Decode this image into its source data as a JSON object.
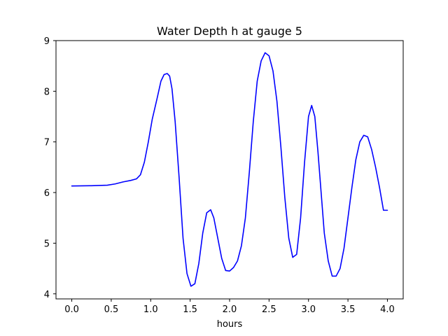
{
  "chart_data": {
    "type": "line",
    "title": "Water Depth h at gauge 5",
    "xlabel": "hours",
    "ylabel": "",
    "xlim": [
      -0.2,
      4.2
    ],
    "ylim": [
      3.9,
      9.0
    ],
    "xticks": [
      0.0,
      0.5,
      1.0,
      1.5,
      2.0,
      2.5,
      3.0,
      3.5,
      4.0
    ],
    "xtick_labels": [
      "0.0",
      "0.5",
      "1.0",
      "1.5",
      "2.0",
      "2.5",
      "3.0",
      "3.5",
      "4.0"
    ],
    "yticks": [
      4,
      5,
      6,
      7,
      8,
      9
    ],
    "ytick_labels": [
      "4",
      "5",
      "6",
      "7",
      "8",
      "9"
    ],
    "grid": false,
    "legend": "none",
    "series": [
      {
        "color": "#0000ff",
        "x": [
          0.0,
          0.25,
          0.45,
          0.55,
          0.65,
          0.75,
          0.82,
          0.87,
          0.92,
          0.97,
          1.02,
          1.08,
          1.13,
          1.17,
          1.21,
          1.24,
          1.27,
          1.31,
          1.36,
          1.41,
          1.46,
          1.51,
          1.56,
          1.61,
          1.66,
          1.71,
          1.76,
          1.8,
          1.85,
          1.9,
          1.95,
          2.0,
          2.05,
          2.1,
          2.15,
          2.2,
          2.25,
          2.3,
          2.35,
          2.4,
          2.45,
          2.5,
          2.55,
          2.6,
          2.65,
          2.7,
          2.75,
          2.8,
          2.85,
          2.9,
          2.95,
          3.0,
          3.04,
          3.08,
          3.12,
          3.16,
          3.2,
          3.25,
          3.3,
          3.35,
          3.4,
          3.45,
          3.5,
          3.55,
          3.6,
          3.65,
          3.7,
          3.75,
          3.8,
          3.85,
          3.9,
          3.95,
          4.0
        ],
        "y": [
          6.13,
          6.135,
          6.145,
          6.17,
          6.21,
          6.24,
          6.27,
          6.35,
          6.6,
          7.0,
          7.45,
          7.85,
          8.2,
          8.33,
          8.35,
          8.3,
          8.05,
          7.4,
          6.3,
          5.1,
          4.4,
          4.15,
          4.2,
          4.6,
          5.2,
          5.6,
          5.66,
          5.5,
          5.1,
          4.7,
          4.46,
          4.45,
          4.52,
          4.65,
          4.95,
          5.5,
          6.4,
          7.4,
          8.2,
          8.6,
          8.76,
          8.7,
          8.4,
          7.8,
          6.9,
          5.9,
          5.1,
          4.72,
          4.78,
          5.5,
          6.6,
          7.5,
          7.72,
          7.5,
          6.8,
          6.0,
          5.2,
          4.65,
          4.35,
          4.35,
          4.5,
          4.9,
          5.5,
          6.1,
          6.65,
          7.0,
          7.13,
          7.1,
          6.85,
          6.5,
          6.1,
          5.65,
          5.65
        ]
      }
    ]
  }
}
